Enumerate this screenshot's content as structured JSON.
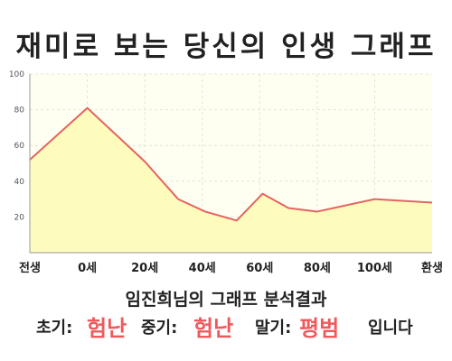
{
  "title": "재미로 보는 당신의 인생 그래프",
  "chart_data": {
    "type": "area",
    "x_ticks": [
      "전생",
      "0세",
      "20세",
      "40세",
      "60세",
      "80세",
      "100세",
      "환생"
    ],
    "y_ticks": [
      "100",
      "80",
      "60",
      "40",
      "20"
    ],
    "ylim": [
      0,
      100
    ],
    "grid": true,
    "points": [
      {
        "x": 0,
        "y": 52
      },
      {
        "x": 1,
        "y": 81
      },
      {
        "x": 2,
        "y": 51
      },
      {
        "x": 2.58,
        "y": 30
      },
      {
        "x": 3.05,
        "y": 23
      },
      {
        "x": 3.6,
        "y": 18
      },
      {
        "x": 4.05,
        "y": 33
      },
      {
        "x": 4.5,
        "y": 25
      },
      {
        "x": 5,
        "y": 23
      },
      {
        "x": 6,
        "y": 30
      },
      {
        "x": 7,
        "y": 28
      }
    ],
    "line_color": "#e46464",
    "fill_color": "#fdfcbc",
    "plot_background": "#fffff1"
  },
  "result": {
    "heading": "임진희님의 그래프 분석결과",
    "early_label": "초기:",
    "early_value": "험난",
    "middle_label": "중기:",
    "middle_value": "험난",
    "late_label": "말기:",
    "late_value": "평범",
    "suffix": "입니다",
    "value_color": "#f0595b"
  }
}
